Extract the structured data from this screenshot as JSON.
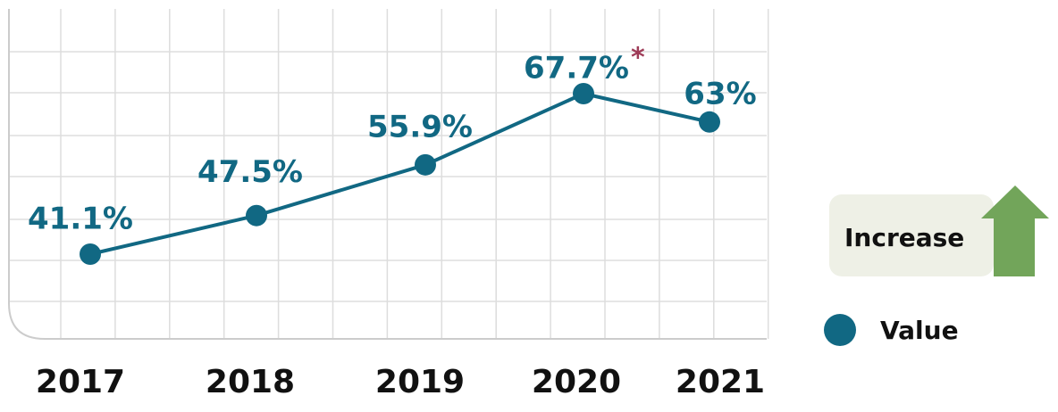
{
  "chart_data": {
    "type": "line",
    "categories": [
      "2017",
      "2018",
      "2019",
      "2020",
      "2021"
    ],
    "series": [
      {
        "name": "Value",
        "color": "#116883",
        "values": [
          41.1,
          47.5,
          55.9,
          67.7,
          63
        ],
        "value_labels": [
          "41.1%",
          "47.5%",
          "55.9%",
          "67.7%",
          "63%"
        ]
      }
    ],
    "annotation": "*",
    "annotation_color": "#9e3b57",
    "indicator": "Increase",
    "indicator_color": "#72a55a",
    "grid": true
  }
}
